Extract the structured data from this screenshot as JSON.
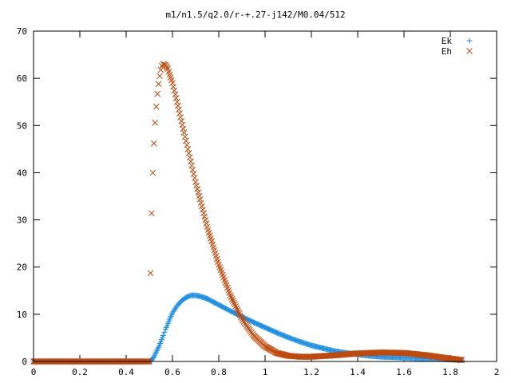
{
  "chart_data": {
    "type": "scatter",
    "title": "m1/n1.5/q2.0/r-+.27-j142/M0.04/512",
    "xlabel": "",
    "ylabel": "",
    "xlim": [
      0,
      2
    ],
    "ylim": [
      0,
      70
    ],
    "x_ticks": [
      "0",
      "0.2",
      "0.4",
      "0.6",
      "0.8",
      "1",
      "1.2",
      "1.4",
      "1.6",
      "1.8",
      "2"
    ],
    "y_ticks": [
      "0",
      "10",
      "20",
      "30",
      "40",
      "50",
      "60",
      "70"
    ],
    "grid": false,
    "legend_position": "top-right",
    "series": [
      {
        "name": "Ek",
        "marker": "plus",
        "color": "#1e90e6",
        "points": [
          [
            0.0,
            0
          ],
          [
            0.1,
            0
          ],
          [
            0.2,
            0
          ],
          [
            0.3,
            0
          ],
          [
            0.4,
            0
          ],
          [
            0.5,
            0
          ],
          [
            0.51,
            0.3
          ],
          [
            0.52,
            1.0
          ],
          [
            0.53,
            2.0
          ],
          [
            0.54,
            3.0
          ],
          [
            0.55,
            4.2
          ],
          [
            0.56,
            5.5
          ],
          [
            0.57,
            6.8
          ],
          [
            0.58,
            8.0
          ],
          [
            0.59,
            9.2
          ],
          [
            0.6,
            10.3
          ],
          [
            0.62,
            11.8
          ],
          [
            0.64,
            12.9
          ],
          [
            0.66,
            13.6
          ],
          [
            0.68,
            14.0
          ],
          [
            0.7,
            14.0
          ],
          [
            0.72,
            13.8
          ],
          [
            0.75,
            13.3
          ],
          [
            0.8,
            12.0
          ],
          [
            0.85,
            10.7
          ],
          [
            0.9,
            9.5
          ],
          [
            0.95,
            8.3
          ],
          [
            1.0,
            7.2
          ],
          [
            1.05,
            6.1
          ],
          [
            1.1,
            5.1
          ],
          [
            1.15,
            4.2
          ],
          [
            1.2,
            3.4
          ],
          [
            1.25,
            2.8
          ],
          [
            1.3,
            2.2
          ],
          [
            1.35,
            1.8
          ],
          [
            1.4,
            1.5
          ],
          [
            1.45,
            1.2
          ],
          [
            1.5,
            1.0
          ],
          [
            1.55,
            0.9
          ],
          [
            1.6,
            0.8
          ],
          [
            1.65,
            0.7
          ],
          [
            1.7,
            0.6
          ],
          [
            1.75,
            0.5
          ],
          [
            1.8,
            0.4
          ],
          [
            1.85,
            0.3
          ]
        ]
      },
      {
        "name": "Eh",
        "marker": "cross",
        "color": "#c04a0e",
        "points": [
          [
            0.0,
            0
          ],
          [
            0.1,
            0
          ],
          [
            0.2,
            0
          ],
          [
            0.3,
            0
          ],
          [
            0.4,
            0
          ],
          [
            0.5,
            0
          ],
          [
            0.505,
            18.7
          ],
          [
            0.51,
            31.4
          ],
          [
            0.515,
            40.0
          ],
          [
            0.52,
            46.2
          ],
          [
            0.525,
            50.6
          ],
          [
            0.53,
            54.0
          ],
          [
            0.535,
            56.7
          ],
          [
            0.54,
            58.8
          ],
          [
            0.545,
            60.5
          ],
          [
            0.55,
            61.8
          ],
          [
            0.555,
            62.6
          ],
          [
            0.56,
            63.0
          ],
          [
            0.57,
            62.8
          ],
          [
            0.58,
            62.0
          ],
          [
            0.6,
            59.0
          ],
          [
            0.62,
            55.0
          ],
          [
            0.65,
            48.5
          ],
          [
            0.7,
            38.0
          ],
          [
            0.75,
            28.5
          ],
          [
            0.8,
            20.5
          ],
          [
            0.85,
            14.0
          ],
          [
            0.9,
            9.0
          ],
          [
            0.95,
            5.5
          ],
          [
            1.0,
            3.2
          ],
          [
            1.05,
            1.8
          ],
          [
            1.1,
            1.2
          ],
          [
            1.15,
            1.0
          ],
          [
            1.2,
            1.0
          ],
          [
            1.3,
            1.3
          ],
          [
            1.4,
            1.7
          ],
          [
            1.5,
            1.9
          ],
          [
            1.6,
            1.8
          ],
          [
            1.7,
            1.3
          ],
          [
            1.8,
            0.6
          ],
          [
            1.85,
            0.3
          ]
        ]
      }
    ]
  }
}
